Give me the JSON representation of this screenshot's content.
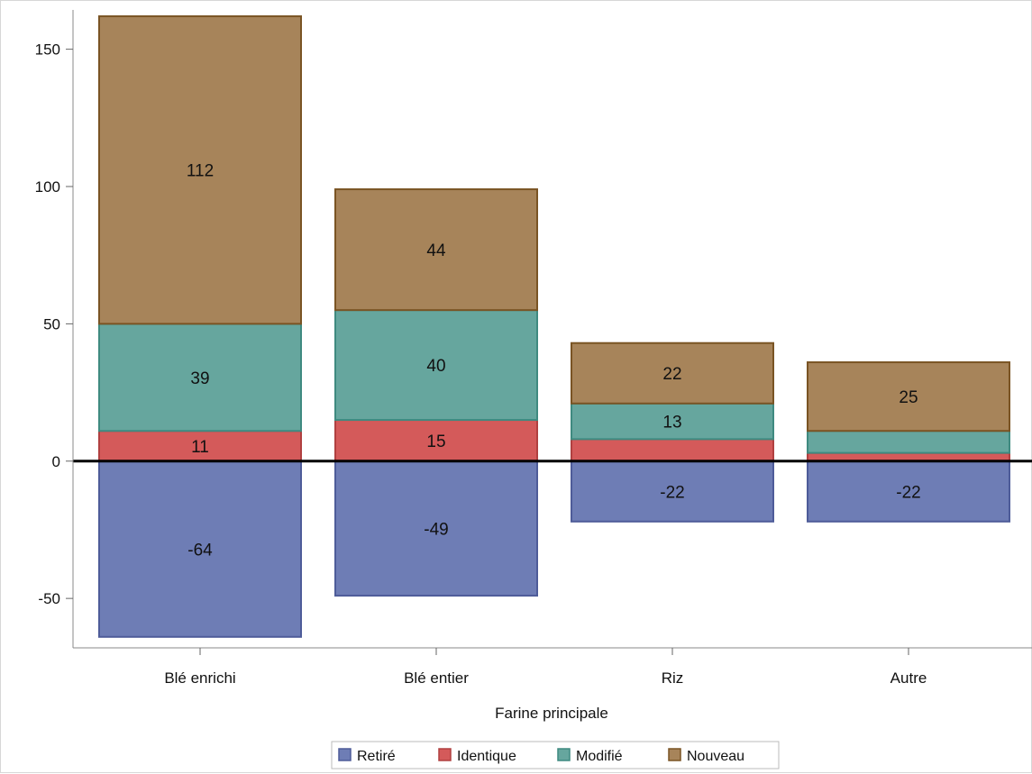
{
  "chart_data": {
    "type": "bar",
    "stacked": true,
    "xlabel": "Farine principale",
    "ylabel": "",
    "categories": [
      "Blé enrichi",
      "Blé entier",
      "Riz",
      "Autre"
    ],
    "ylim": [
      -68,
      163
    ],
    "yticks": [
      -50,
      0,
      50,
      100,
      150
    ],
    "grid": false,
    "reference_line": 0,
    "legend_placement": "bottom",
    "series": [
      {
        "name": "Retiré",
        "values": [
          -64,
          -49,
          -22,
          -22
        ],
        "labels": [
          "-64",
          "-49",
          "-22",
          "-22"
        ],
        "fill": "#6e7db5",
        "stroke": "#4e5c99"
      },
      {
        "name": "Identique",
        "values": [
          11,
          15,
          8,
          3
        ],
        "labels": [
          "11",
          "15",
          "",
          ""
        ],
        "fill": "#d45a5a",
        "stroke": "#b04040"
      },
      {
        "name": "Modifié",
        "values": [
          39,
          40,
          13,
          8
        ],
        "labels": [
          "39",
          "40",
          "13",
          ""
        ],
        "fill": "#66a69e",
        "stroke": "#3f8a80"
      },
      {
        "name": "Nouveau",
        "values": [
          112,
          44,
          22,
          25
        ],
        "labels": [
          "112",
          "44",
          "22",
          "25"
        ],
        "fill": "#a7845a",
        "stroke": "#7a5424"
      }
    ]
  }
}
